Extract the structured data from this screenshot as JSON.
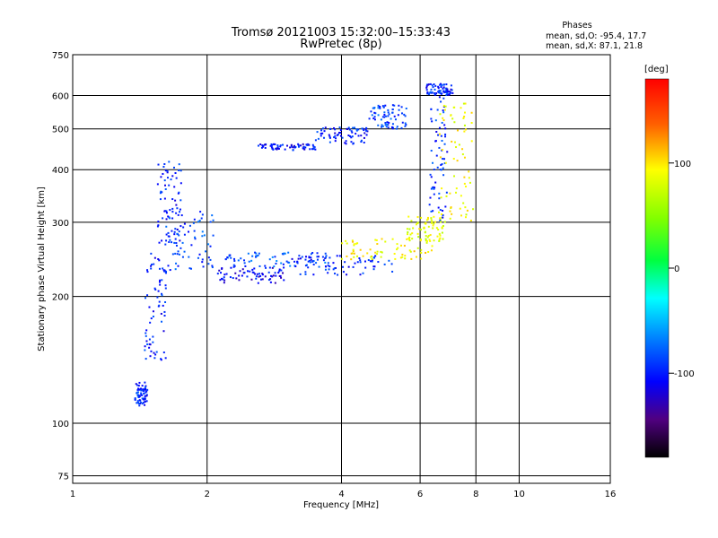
{
  "chart_data": {
    "type": "scatter",
    "title": "Tromsø 20121003 15:32:00–15:33:43",
    "subtitle": "RwPretec (8p)",
    "xlabel": "Frequency [MHz]",
    "ylabel": "Stationary phase Virtual Height [km]",
    "x_scale": "log",
    "y_scale": "log",
    "xlim": [
      1,
      16
    ],
    "ylim": [
      72,
      750
    ],
    "x_ticks": [
      1,
      2,
      4,
      6,
      8,
      10,
      16
    ],
    "y_ticks": [
      75,
      100,
      200,
      300,
      400,
      500,
      600,
      750
    ],
    "grid": true,
    "stats": {
      "header": "Phases",
      "line_o": "mean, sd,O: -95.4, 17.7",
      "line_x": "mean, sd,X:  87.1, 21.8"
    },
    "colorbar": {
      "label": "[deg]",
      "range": [
        -180,
        180
      ],
      "ticks": [
        100,
        0,
        -100
      ],
      "tick_labels": [
        "100",
        "0",
        "-100"
      ]
    },
    "traces": [
      {
        "x_range": [
          1.38,
          1.47
        ],
        "y_range": [
          110,
          125
        ],
        "phase": -100
      },
      {
        "x_range": [
          1.45,
          1.62
        ],
        "y_range": [
          140,
          260
        ],
        "phase": -100
      },
      {
        "x_range": [
          1.55,
          1.75
        ],
        "y_range": [
          250,
          420
        ],
        "phase": -100
      },
      {
        "x_range": [
          1.6,
          2.1
        ],
        "y_range": [
          230,
          330
        ],
        "phase": -90
      },
      {
        "x_range": [
          2.1,
          3.0
        ],
        "y_range": [
          215,
          235
        ],
        "phase": -110
      },
      {
        "x_range": [
          2.2,
          3.8
        ],
        "y_range": [
          235,
          255
        ],
        "phase": -85
      },
      {
        "x_range": [
          3.0,
          5.2
        ],
        "y_range": [
          225,
          250
        ],
        "phase": -100
      },
      {
        "x_range": [
          4.0,
          6.4
        ],
        "y_range": [
          245,
          275
        ],
        "phase": 90
      },
      {
        "x_range": [
          5.6,
          6.8
        ],
        "y_range": [
          270,
          310
        ],
        "phase": 80
      },
      {
        "x_range": [
          6.3,
          6.9
        ],
        "y_range": [
          300,
          620
        ],
        "phase": -95
      },
      {
        "x_range": [
          6.6,
          7.9
        ],
        "y_range": [
          300,
          580
        ],
        "phase": 85
      },
      {
        "x_range": [
          2.6,
          3.5
        ],
        "y_range": [
          445,
          460
        ],
        "phase": -105
      },
      {
        "x_range": [
          3.5,
          4.6
        ],
        "y_range": [
          460,
          505
        ],
        "phase": -100
      },
      {
        "x_range": [
          4.6,
          5.6
        ],
        "y_range": [
          500,
          570
        ],
        "phase": -90
      },
      {
        "x_range": [
          6.2,
          7.1
        ],
        "y_range": [
          600,
          640
        ],
        "phase": -100
      }
    ]
  }
}
